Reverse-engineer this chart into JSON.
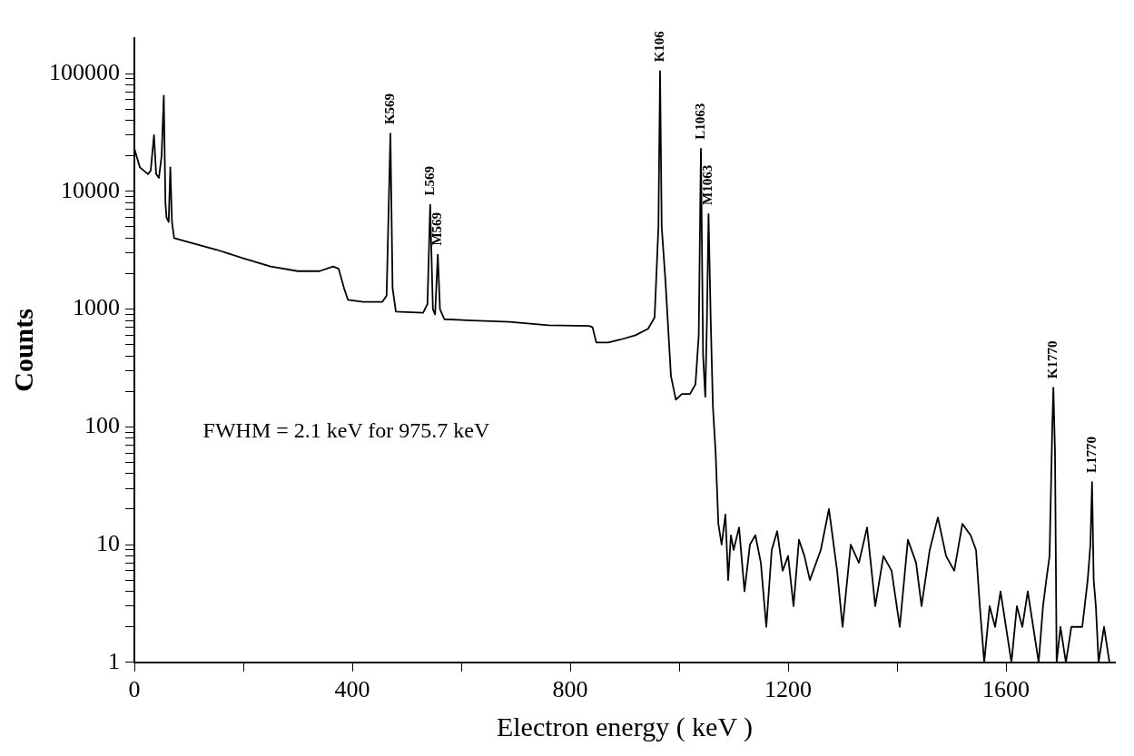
{
  "chart_data": {
    "type": "line",
    "xlabel": "Electron energy ( keV )",
    "ylabel": "Counts",
    "log": "y",
    "grid": false,
    "legend": false,
    "marker": "none",
    "xlim": [
      0,
      1800
    ],
    "ylim": [
      1,
      200000
    ],
    "xticks": [
      0,
      {
        "value": 200,
        "label": null
      },
      400,
      {
        "value": 600,
        "label": null
      },
      800,
      {
        "value": 1000,
        "label": null
      },
      1200,
      {
        "value": 1400,
        "label": null
      },
      1600
    ],
    "yticks": [
      1,
      {
        "value": 2,
        "label": null
      },
      {
        "value": 3,
        "label": null
      },
      {
        "value": 4,
        "label": null
      },
      {
        "value": 5,
        "label": null
      },
      {
        "value": 6,
        "label": null
      },
      {
        "value": 7,
        "label": null
      },
      {
        "value": 8,
        "label": null
      },
      {
        "value": 9,
        "label": null
      },
      10,
      {
        "value": 20,
        "label": null
      },
      {
        "value": 30,
        "label": null
      },
      {
        "value": 40,
        "label": null
      },
      {
        "value": 50,
        "label": null
      },
      {
        "value": 60,
        "label": null
      },
      {
        "value": 70,
        "label": null
      },
      {
        "value": 80,
        "label": null
      },
      {
        "value": 90,
        "label": null
      },
      100,
      {
        "value": 200,
        "label": null
      },
      {
        "value": 300,
        "label": null
      },
      {
        "value": 400,
        "label": null
      },
      {
        "value": 500,
        "label": null
      },
      {
        "value": 600,
        "label": null
      },
      {
        "value": 700,
        "label": null
      },
      {
        "value": 800,
        "label": null
      },
      {
        "value": 900,
        "label": null
      },
      1000,
      {
        "value": 2000,
        "label": null
      },
      {
        "value": 3000,
        "label": null
      },
      {
        "value": 4000,
        "label": null
      },
      {
        "value": 5000,
        "label": null
      },
      {
        "value": 6000,
        "label": null
      },
      {
        "value": 7000,
        "label": null
      },
      {
        "value": 8000,
        "label": null
      },
      {
        "value": 9000,
        "label": null
      },
      10000,
      {
        "value": 20000,
        "label": null
      },
      {
        "value": 30000,
        "label": null
      },
      {
        "value": 40000,
        "label": null
      },
      {
        "value": 50000,
        "label": null
      },
      {
        "value": 60000,
        "label": null
      },
      {
        "value": 70000,
        "label": null
      },
      {
        "value": 80000,
        "label": null
      },
      {
        "value": 90000,
        "label": null
      },
      100000
    ],
    "series": [
      {
        "color": "#000000",
        "x": [
          0,
          10,
          25,
          30,
          36,
          40,
          45,
          50,
          54,
          57,
          59,
          63,
          66,
          69,
          73,
          100,
          150,
          200,
          250,
          300,
          340,
          365,
          375,
          385,
          392,
          420,
          455,
          463,
          470,
          474,
          480,
          530,
          538,
          543,
          548,
          552,
          557,
          561,
          569,
          620,
          688,
          760,
          835,
          841,
          848,
          870,
          892,
          920,
          943,
          955,
          962,
          965,
          968,
          975,
          985,
          994,
          1005,
          1020,
          1030,
          1036,
          1040,
          1044,
          1048,
          1051,
          1054,
          1058,
          1062,
          1067,
          1072,
          1078,
          1085,
          1090,
          1095,
          1100,
          1110,
          1120,
          1130,
          1140,
          1150,
          1160,
          1170,
          1180,
          1190,
          1200,
          1210,
          1220,
          1230,
          1240,
          1260,
          1275,
          1290,
          1300,
          1315,
          1330,
          1345,
          1360,
          1375,
          1390,
          1405,
          1420,
          1435,
          1445,
          1460,
          1475,
          1490,
          1505,
          1520,
          1535,
          1545,
          1552,
          1560,
          1570,
          1580,
          1590,
          1600,
          1610,
          1620,
          1630,
          1640,
          1650,
          1660,
          1668,
          1674,
          1680,
          1685,
          1687,
          1690,
          1693,
          1700,
          1710,
          1720,
          1730,
          1740,
          1750,
          1755,
          1758,
          1761,
          1765,
          1770,
          1780,
          1790
        ],
        "values": [
          23000,
          16000,
          14000,
          15000,
          30000,
          14000,
          13000,
          20000,
          65000,
          8000,
          6000,
          5500,
          16000,
          5500,
          4000,
          3700,
          3200,
          2700,
          2300,
          2100,
          2100,
          2300,
          2200,
          1500,
          1200,
          1150,
          1150,
          1300,
          31000,
          1500,
          950,
          930,
          1100,
          7700,
          1000,
          900,
          2900,
          1000,
          820,
          800,
          780,
          730,
          720,
          700,
          520,
          520,
          550,
          600,
          680,
          850,
          5000,
          105000,
          5000,
          1700,
          270,
          170,
          190,
          190,
          230,
          600,
          23000,
          400,
          180,
          800,
          6400,
          800,
          150,
          60,
          15,
          10,
          18,
          5,
          12,
          9,
          14,
          4,
          10,
          12,
          7,
          2,
          9,
          13,
          6,
          8,
          3,
          11,
          8,
          5,
          9,
          20,
          6,
          2,
          10,
          7,
          14,
          3,
          8,
          6,
          2,
          11,
          7,
          3,
          9,
          17,
          8,
          6,
          15,
          12,
          9,
          3,
          1,
          3,
          2,
          4,
          2,
          1,
          3,
          2,
          4,
          2,
          1,
          3,
          5,
          8,
          100,
          215,
          60,
          1,
          2,
          1,
          2,
          2,
          2,
          5,
          10,
          34,
          5,
          3,
          1,
          2,
          1
        ]
      }
    ],
    "annotations": [
      {
        "text": "K569",
        "x": 470,
        "y": 31000
      },
      {
        "text": "L569",
        "x": 543,
        "y": 7700
      },
      {
        "text": "M569",
        "x": 557,
        "y": 2900
      },
      {
        "text": "K106",
        "x": 965,
        "y": 105000
      },
      {
        "text": "L1063",
        "x": 1040,
        "y": 23000
      },
      {
        "text": "M1063",
        "x": 1054,
        "y": 6400
      },
      {
        "text": "K1770",
        "x": 1687,
        "y": 215
      },
      {
        "text": "L1770",
        "x": 1758,
        "y": 34
      },
      "FWHM = 2.1 keV for 975.7 keV"
    ]
  }
}
